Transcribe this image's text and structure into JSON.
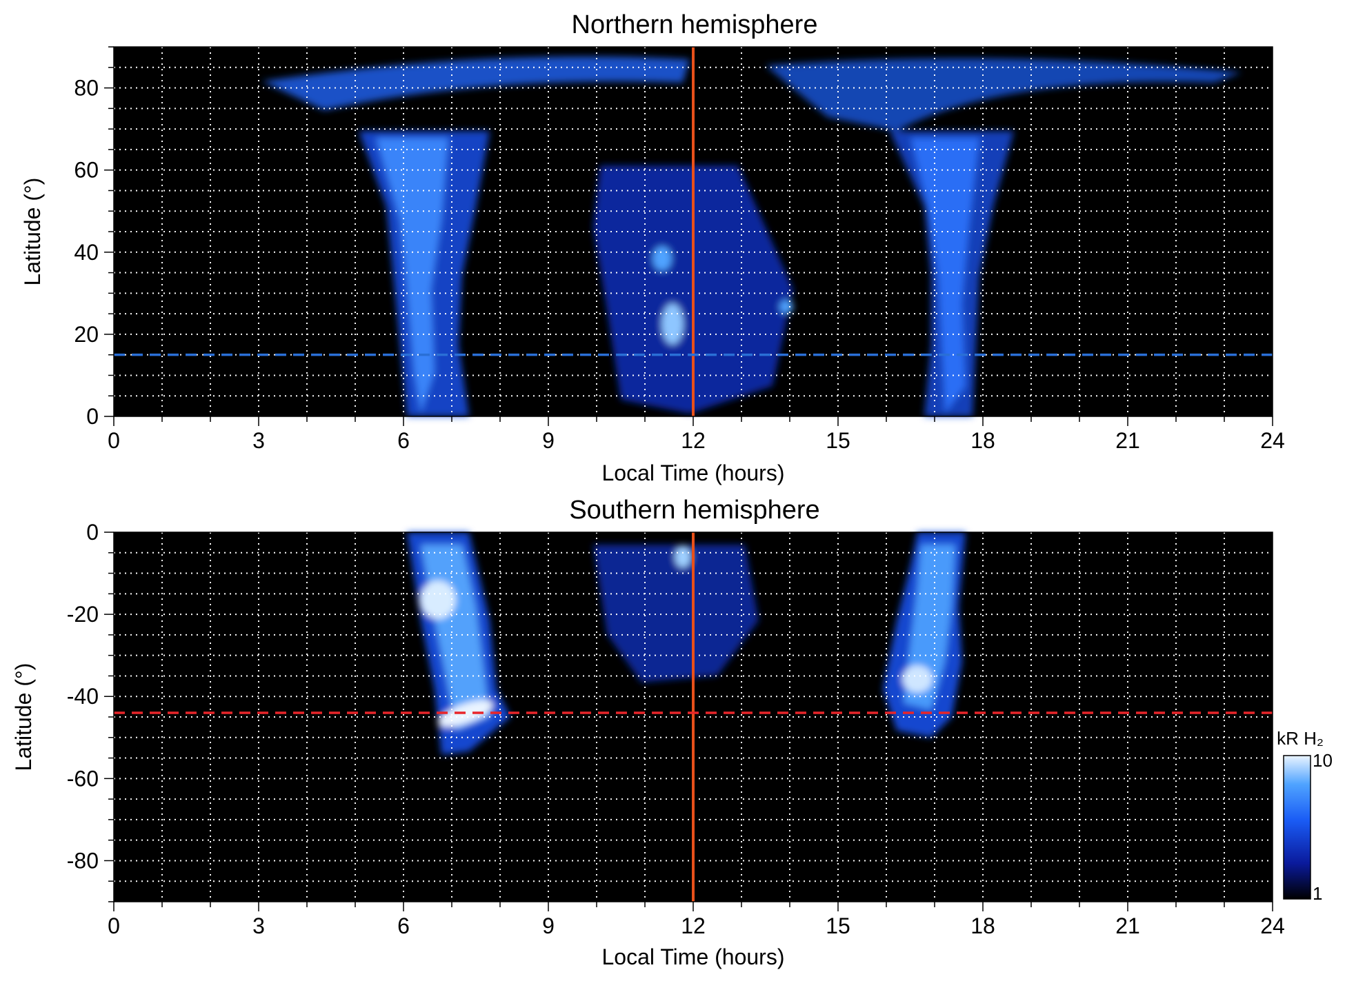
{
  "chart_data": [
    {
      "type": "heatmap",
      "title": "Northern hemisphere",
      "xlabel": "Local Time (hours)",
      "ylabel": "Latitude (°)",
      "xlim": [
        0,
        24
      ],
      "ylim": [
        0,
        90
      ],
      "xticks": [
        0,
        3,
        6,
        9,
        12,
        15,
        18,
        21,
        24
      ],
      "xtick_labels": [
        "0",
        "3",
        "6",
        "9",
        "12",
        "15",
        "18",
        "21",
        "24"
      ],
      "yticks": [
        0,
        20,
        40,
        60,
        80
      ],
      "ytick_labels": [
        "0",
        "20",
        "40",
        "60",
        "80"
      ],
      "grid": true,
      "background_color": "#000000",
      "reference_lines": [
        {
          "orientation": "vertical",
          "value": 12,
          "style": "solid",
          "color": "#e8501a"
        },
        {
          "orientation": "horizontal",
          "value": 15,
          "style": "dashed",
          "color": "#2a6fd6"
        }
      ],
      "emission_regions": [
        {
          "lt_center": 6.5,
          "lat_range": [
            0,
            86
          ],
          "peak_kR": 8
        },
        {
          "lt_center": 17.5,
          "lat_range": [
            0,
            86
          ],
          "peak_kR": 7
        },
        {
          "lt_center": 12,
          "lat_range": [
            2,
            60
          ],
          "peak_kR": 9
        }
      ]
    },
    {
      "type": "heatmap",
      "title": "Southern hemisphere",
      "xlabel": "Local Time (hours)",
      "ylabel": "Latitude (°)",
      "xlim": [
        0,
        24
      ],
      "ylim": [
        -90,
        0
      ],
      "xticks": [
        0,
        3,
        6,
        9,
        12,
        15,
        18,
        21,
        24
      ],
      "xtick_labels": [
        "0",
        "3",
        "6",
        "9",
        "12",
        "15",
        "18",
        "21",
        "24"
      ],
      "yticks": [
        0,
        -20,
        -40,
        -60,
        -80
      ],
      "ytick_labels": [
        "0",
        "-20",
        "-40",
        "-60",
        "-80"
      ],
      "grid": true,
      "background_color": "#000000",
      "reference_lines": [
        {
          "orientation": "vertical",
          "value": 12,
          "style": "solid",
          "color": "#e8501a"
        },
        {
          "orientation": "horizontal",
          "value": -44,
          "style": "dashed",
          "color": "#e8262a"
        }
      ],
      "emission_regions": [
        {
          "lt_center": 7.2,
          "lat_range": [
            -55,
            0
          ],
          "peak_kR": 10
        },
        {
          "lt_center": 16.8,
          "lat_range": [
            -52,
            0
          ],
          "peak_kR": 10
        },
        {
          "lt_center": 11.5,
          "lat_range": [
            -36,
            0
          ],
          "peak_kR": 8
        }
      ]
    }
  ],
  "colorbar": {
    "label": "kR H₂",
    "scale": "log",
    "range": [
      1,
      10
    ],
    "tick_labels": [
      "10",
      "1"
    ],
    "colors": [
      "#000000",
      "#0a1a9c",
      "#1a5cf5",
      "#4fa3ff",
      "#eaf4ff"
    ]
  }
}
